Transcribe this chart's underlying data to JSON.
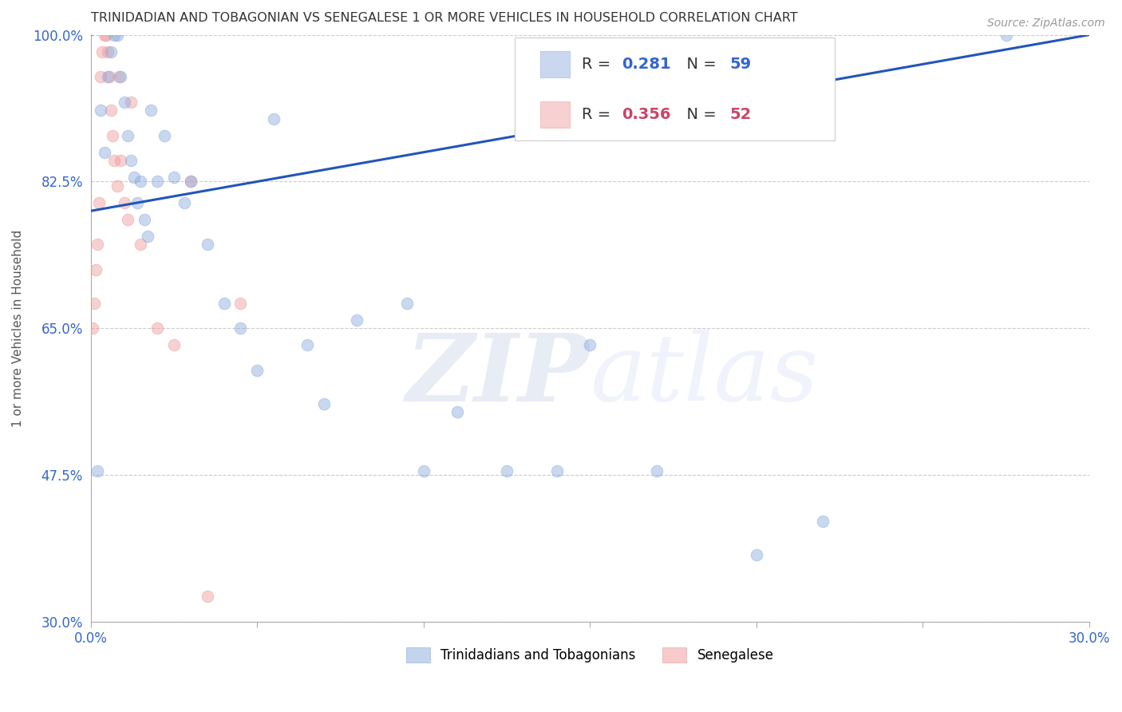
{
  "title": "TRINIDADIAN AND TOBAGONIAN VS SENEGALESE 1 OR MORE VEHICLES IN HOUSEHOLD CORRELATION CHART",
  "source": "Source: ZipAtlas.com",
  "ylabel": "1 or more Vehicles in Household",
  "xlabel": "",
  "xlim": [
    0.0,
    30.0
  ],
  "ylim": [
    30.0,
    100.0
  ],
  "xticks": [
    0.0,
    5.0,
    10.0,
    15.0,
    20.0,
    25.0,
    30.0
  ],
  "yticks": [
    30.0,
    47.5,
    65.0,
    82.5,
    100.0
  ],
  "xticklabels": [
    "0.0%",
    "",
    "",
    "",
    "",
    "",
    "30.0%"
  ],
  "yticklabels": [
    "30.0%",
    "47.5%",
    "65.0%",
    "82.5%",
    "100.0%"
  ],
  "blue_color": "#88AADD",
  "pink_color": "#EE9999",
  "blue_line_color": "#2255BB",
  "pink_line_color": "#CC4466",
  "legend_label_blue": "Trinidadians and Tobagonians",
  "legend_label_pink": "Senegalese",
  "watermark_zip": "ZIP",
  "watermark_atlas": "atlas",
  "background_color": "#ffffff",
  "grid_color": "#cccccc",
  "blue_trendline": [
    0.0,
    30.0,
    79.0,
    100.0
  ],
  "pink_trendline": [
    0.0,
    3.5,
    100.0,
    104.0
  ],
  "blue_x": [
    0.2,
    0.3,
    0.4,
    0.5,
    0.6,
    0.7,
    0.8,
    0.9,
    1.0,
    1.1,
    1.2,
    1.3,
    1.4,
    1.5,
    1.6,
    1.7,
    1.8,
    2.0,
    2.2,
    2.5,
    2.8,
    3.0,
    3.5,
    4.0,
    4.5,
    5.0,
    5.5,
    6.5,
    7.0,
    8.0,
    9.5,
    10.0,
    11.0,
    12.5,
    14.0,
    15.0,
    17.0,
    20.0,
    22.0,
    27.5
  ],
  "blue_y": [
    48.0,
    91.0,
    86.0,
    95.0,
    98.0,
    100.0,
    100.0,
    95.0,
    92.0,
    88.0,
    85.0,
    83.0,
    80.0,
    82.5,
    78.0,
    76.0,
    91.0,
    82.5,
    88.0,
    83.0,
    80.0,
    82.5,
    75.0,
    68.0,
    65.0,
    60.0,
    90.0,
    63.0,
    56.0,
    66.0,
    68.0,
    48.0,
    55.0,
    48.0,
    48.0,
    63.0,
    48.0,
    38.0,
    42.0,
    100.0
  ],
  "pink_x": [
    0.05,
    0.1,
    0.15,
    0.2,
    0.25,
    0.3,
    0.35,
    0.4,
    0.45,
    0.5,
    0.55,
    0.6,
    0.65,
    0.7,
    0.8,
    0.85,
    0.9,
    1.0,
    1.1,
    1.2,
    1.5,
    2.0,
    2.5,
    3.0,
    3.5,
    4.5
  ],
  "pink_y": [
    65.0,
    68.0,
    72.0,
    75.0,
    80.0,
    95.0,
    98.0,
    100.0,
    100.0,
    98.0,
    95.0,
    91.0,
    88.0,
    85.0,
    82.0,
    95.0,
    85.0,
    80.0,
    78.0,
    92.0,
    75.0,
    65.0,
    63.0,
    82.5,
    33.0,
    68.0
  ]
}
